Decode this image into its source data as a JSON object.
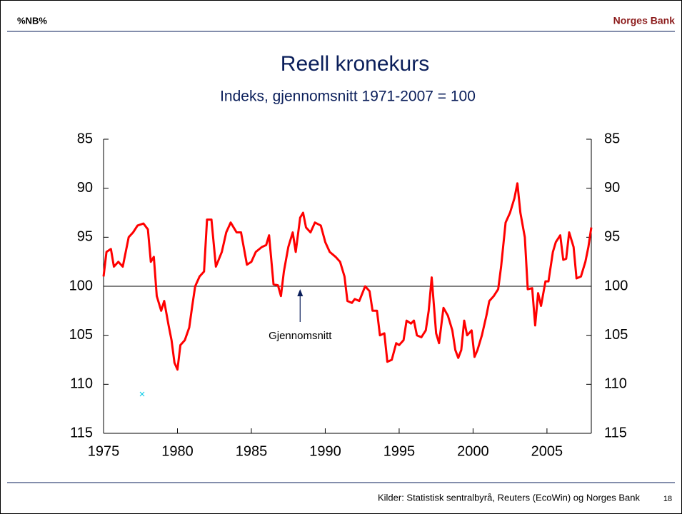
{
  "slide": {
    "logo": "%NB%",
    "brand": "Norges Bank",
    "source": "Kilder: Statistisk sentralbyrå, Reuters (EcoWin) og Norges Bank",
    "page": 18
  },
  "chart_data": {
    "type": "line",
    "title": "Reell kronekurs",
    "subtitle": "Indeks, gjennomsnitt 1971-2007 = 100",
    "annotation": "Gjennomsnitt",
    "annotation_x": 1988.3,
    "hline": 100,
    "x": [
      1975.0,
      1975.2,
      1975.5,
      1975.7,
      1976.0,
      1976.3,
      1976.7,
      1977.0,
      1977.3,
      1977.7,
      1978.0,
      1978.2,
      1978.4,
      1978.6,
      1978.9,
      1979.1,
      1979.4,
      1979.6,
      1979.8,
      1980.0,
      1980.2,
      1980.5,
      1980.8,
      1981.0,
      1981.2,
      1981.5,
      1981.8,
      1982.0,
      1982.3,
      1982.6,
      1983.0,
      1983.3,
      1983.6,
      1984.0,
      1984.3,
      1984.7,
      1985.0,
      1985.3,
      1985.7,
      1986.0,
      1986.2,
      1986.5,
      1986.8,
      1987.0,
      1987.2,
      1987.5,
      1987.8,
      1988.0,
      1988.3,
      1988.5,
      1988.7,
      1989.0,
      1989.3,
      1989.7,
      1990.0,
      1990.3,
      1990.7,
      1991.0,
      1991.3,
      1991.5,
      1991.8,
      1992.0,
      1992.3,
      1992.7,
      1993.0,
      1993.2,
      1993.5,
      1993.7,
      1994.0,
      1994.2,
      1994.5,
      1994.8,
      1995.0,
      1995.3,
      1995.5,
      1995.8,
      1996.0,
      1996.2,
      1996.5,
      1996.8,
      1997.0,
      1997.2,
      1997.5,
      1997.7,
      1998.0,
      1998.3,
      1998.6,
      1998.8,
      1999.0,
      1999.2,
      1999.4,
      1999.6,
      1999.9,
      2000.1,
      2000.3,
      2000.6,
      2000.9,
      2001.1,
      2001.4,
      2001.7,
      2001.9,
      2002.2,
      2002.5,
      2002.8,
      2003.0,
      2003.2,
      2003.5,
      2003.7,
      2004.0,
      2004.2,
      2004.4,
      2004.6,
      2004.9,
      2005.1,
      2005.4,
      2005.6,
      2005.9,
      2006.1,
      2006.3,
      2006.5,
      2006.8,
      2007.0,
      2007.3,
      2007.6,
      2007.8,
      2008.0
    ],
    "series": [
      {
        "color": "#ff0000",
        "values": [
          99,
          96.5,
          96.2,
          98,
          97.5,
          98,
          95,
          94.5,
          93.8,
          93.6,
          94.2,
          97.5,
          97,
          101,
          102.5,
          101.5,
          104,
          105.5,
          107.8,
          108.5,
          106,
          105.5,
          104.2,
          102,
          100,
          99,
          98.5,
          93.2,
          93.2,
          98,
          96.5,
          94.5,
          93.5,
          94.5,
          94.5,
          97.8,
          97.5,
          96.5,
          96,
          95.8,
          94.8,
          99.8,
          99.9,
          101,
          98.5,
          96,
          94.5,
          96.5,
          93,
          92.5,
          94,
          94.5,
          93.5,
          93.8,
          95.5,
          96.5,
          97,
          97.5,
          99,
          101.5,
          101.7,
          101.3,
          101.5,
          100,
          100.5,
          102.5,
          102.5,
          105,
          104.8,
          107.7,
          107.5,
          105.8,
          106,
          105.5,
          103.5,
          103.8,
          103.5,
          105,
          105.2,
          104.5,
          102.5,
          99.1,
          104.8,
          105.8,
          102.2,
          103,
          104.5,
          106.5,
          107.3,
          106.5,
          103.5,
          105,
          104.5,
          107.2,
          106.5,
          105,
          103,
          101.5,
          101,
          100.3,
          98,
          93.5,
          92.5,
          91,
          89.5,
          92.5,
          95,
          100.3,
          100.2,
          104,
          100.7,
          102,
          99.5,
          99.5,
          96.5,
          95.5,
          94.8,
          97.3,
          97.2,
          94.5,
          96,
          99.2,
          99,
          97.5,
          96,
          94
        ]
      }
    ],
    "xlim": [
      1975,
      2008
    ],
    "xticks": [
      1975,
      1980,
      1985,
      1990,
      1995,
      2000,
      2005
    ],
    "ylim": [
      115,
      85
    ],
    "yticks": [
      85,
      90,
      95,
      100,
      105,
      110,
      115
    ],
    "y2lim": [
      115,
      85
    ],
    "y2ticks": [
      85,
      90,
      95,
      100,
      105,
      110,
      115
    ]
  }
}
